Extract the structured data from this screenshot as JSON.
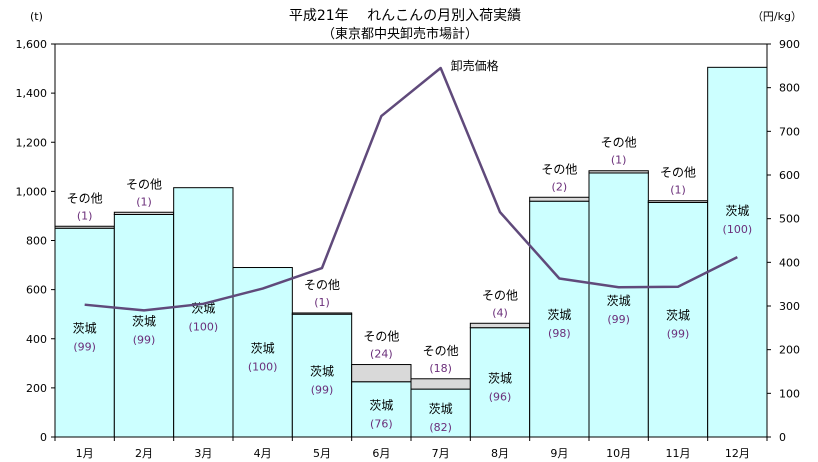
{
  "chart_data": {
    "type": "bar+line",
    "title": "平成21年　 れんこんの月別入荷実績",
    "subtitle": "（東京都中央卸売市場計）",
    "y_left_unit": "(t)",
    "y_right_unit": "（円/kg）",
    "categories": [
      "1月",
      "2月",
      "3月",
      "4月",
      "5月",
      "6月",
      "7月",
      "8月",
      "9月",
      "10月",
      "11月",
      "12月"
    ],
    "y_left": {
      "min": 0,
      "max": 1600,
      "ticks": [
        0,
        200,
        400,
        600,
        800,
        1000,
        1200,
        1400,
        1600
      ]
    },
    "y_right": {
      "min": 0,
      "max": 900,
      "ticks": [
        0,
        100,
        200,
        300,
        400,
        500,
        600,
        700,
        800,
        900
      ]
    },
    "stacked_bars": [
      {
        "name": "茨城",
        "values": [
          850,
          906,
          1015,
          690,
          500,
          225,
          195,
          445,
          960,
          1075,
          955,
          1505
        ],
        "color": "#ccffff"
      },
      {
        "name": "その他",
        "values": [
          8,
          9,
          0,
          0,
          5,
          70,
          42,
          18,
          16,
          9,
          7,
          0
        ],
        "color": "#d9d9d9"
      }
    ],
    "line": {
      "name": "卸売価格",
      "values": [
        303,
        290,
        305,
        340,
        387,
        735,
        845,
        515,
        363,
        343,
        344,
        412
      ],
      "color": "#604a7b"
    },
    "bar_labels": [
      {
        "label": "茨城",
        "pct": "(99)"
      },
      {
        "label": "茨城",
        "pct": "(99)"
      },
      {
        "label": "茨城",
        "pct": "(100)"
      },
      {
        "label": "茨城",
        "pct": "(100)"
      },
      {
        "label": "茨城",
        "pct": "(99)"
      },
      {
        "label": "茨城",
        "pct": "(76)"
      },
      {
        "label": "茨城",
        "pct": "(82)"
      },
      {
        "label": "茨城",
        "pct": "(96)"
      },
      {
        "label": "茨城",
        "pct": "(98)"
      },
      {
        "label": "茨城",
        "pct": "(99)"
      },
      {
        "label": "茨城",
        "pct": "(99)"
      },
      {
        "label": "茨城",
        "pct": "(100)"
      }
    ],
    "other_labels": [
      {
        "label": "その他",
        "pct": "(1)"
      },
      {
        "label": "その他",
        "pct": "(1)"
      },
      null,
      null,
      {
        "label": "その他",
        "pct": "(1)"
      },
      {
        "label": "その他",
        "pct": "(24)"
      },
      {
        "label": "その他",
        "pct": "(18)"
      },
      {
        "label": "その他",
        "pct": "(4)"
      },
      {
        "label": "その他",
        "pct": "(2)"
      },
      {
        "label": "その他",
        "pct": "(1)"
      },
      {
        "label": "その他",
        "pct": "(1)"
      },
      null
    ],
    "line_label": "卸売価格"
  }
}
